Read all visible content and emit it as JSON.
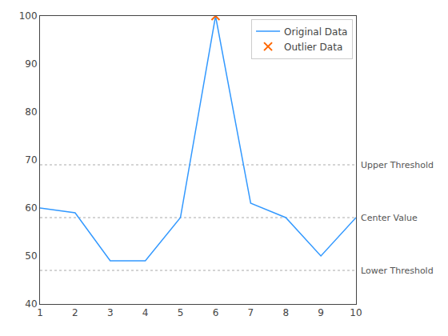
{
  "chart_data": {
    "type": "line",
    "x": [
      1,
      2,
      3,
      4,
      5,
      6,
      7,
      8,
      9,
      10
    ],
    "series": [
      {
        "name": "Original Data",
        "type": "line",
        "color": "#3399ff",
        "line_style": "solid",
        "values": [
          60,
          59,
          49,
          49,
          58,
          100,
          61,
          58,
          50,
          58
        ]
      },
      {
        "name": "Outlier Data",
        "type": "scatter",
        "color": "#ff6600",
        "marker": "x",
        "values": [
          null,
          null,
          null,
          null,
          null,
          100,
          null,
          null,
          null,
          null
        ]
      }
    ],
    "threshold_lines": [
      {
        "value": 69,
        "label": "Upper Threshold",
        "color": "#aaaaaa",
        "line_style": "dotted"
      },
      {
        "value": 58,
        "label": "Center Value",
        "color": "#aaaaaa",
        "line_style": "dotted"
      },
      {
        "value": 47,
        "label": "Lower Threshold",
        "color": "#aaaaaa",
        "line_style": "dotted"
      }
    ],
    "xlim": [
      1,
      10
    ],
    "xticks": [
      1,
      2,
      3,
      4,
      5,
      6,
      7,
      8,
      9,
      10
    ],
    "ylim": [
      40,
      100
    ],
    "yticks": [
      40,
      50,
      60,
      70,
      80,
      90,
      100
    ],
    "grid": false,
    "legend": "upper right"
  }
}
